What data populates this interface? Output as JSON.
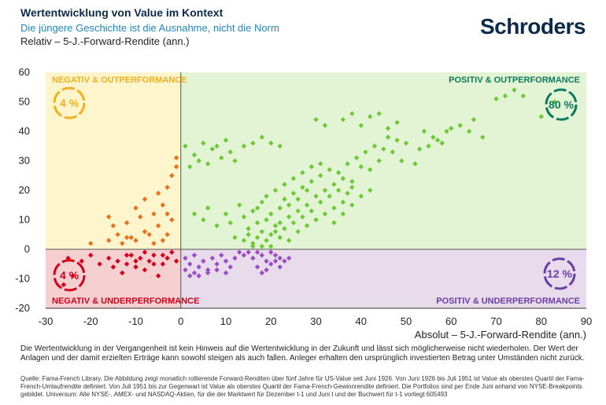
{
  "header": {
    "title": "Wertentwicklung von Value im Kontext",
    "subtitle": "Die jüngere Geschichte ist die Ausnahme, nicht die Norm",
    "logo": "Schroders"
  },
  "footer": {
    "disclaimer": "Die Wertentwicklung in der Vergangenheit ist kein Hinweis auf die Wertentwicklung in der Zukunft und lässt sich möglicherweise nicht wiederholen. Der Wert der Anlagen und der damit erzielten Erträge kann sowohl steigen als auch fallen. Anleger erhalten den ursprünglich investierten Betrag unter Umständen nicht zurück.",
    "source": "Quelle: Fama-French Library. Die Abbildung zeigt monatlich rollierende Forward-Renditen über fünf Jahre für US-Value seit Juni 1926. Von Juni 1926 bis Juli 1951 ist Value als oberstes Quartil der Fama-French-Umlaufrendite definiert. Von Juli 1951 bis zur Gegenwart ist Value als oberstes Quartil der Fama-French-Gewinnrendite definiert. Die Portfolios sind per Ende Juni anhand von NYSE-Breakpoints gebildet. Universum: Alle NYSE-, AMEX- und NASDAQ-Aktien, für die der Marktwert für Dezember t-1 und Juni t und der Buchwert für t-1 vorliegt 605493"
  },
  "chart_data": {
    "type": "scatter",
    "ylabel": "Relativ – 5-J.-Forward-Rendite (ann.)",
    "xlabel": "Absolut – 5-J.-Forward-Rendite (ann.)",
    "xlim": [
      -30,
      90
    ],
    "ylim": [
      -20,
      60
    ],
    "xticks": [
      "-30",
      "-20",
      "-10",
      "0",
      "10",
      "20",
      "30",
      "40",
      "50",
      "60",
      "70",
      "80",
      "90"
    ],
    "yticks": [
      "60",
      "50",
      "40",
      "30",
      "20",
      "10",
      "0",
      "-10",
      "-20"
    ],
    "colors": {
      "neg_out": "#e8701a",
      "pos_out": "#6cc935",
      "pos_under": "#9b4dc4",
      "neg_under": "#d4001b",
      "neg_out_text": "#f2b01e",
      "pos_out_text": "#0d7a5e",
      "pos_under_text": "#6a3fa3",
      "neg_under_text": "#d4001b",
      "neg_out_bg": "#fff5cc",
      "pos_out_bg": "#e3f4d4",
      "pos_under_bg": "#e8dbec",
      "neg_under_bg": "#f6cfd0"
    },
    "quadrants": {
      "neg_out": {
        "label": "NEGATIV & OUTPERFORMANCE",
        "pct": "4 %"
      },
      "pos_out": {
        "label": "POSITIV & OUTPERFORMANCE",
        "pct": "80 %"
      },
      "pos_under": {
        "label": "POSITIV & UNDERPERFORMANCE",
        "pct": "12 %"
      },
      "neg_under": {
        "label": "NEGATIV & UNDERPERFORMANCE",
        "pct": "4 %"
      }
    },
    "series": [
      {
        "group": "pos_out",
        "points": [
          [
            1,
            35
          ],
          [
            3,
            32
          ],
          [
            5,
            36
          ],
          [
            7,
            34
          ],
          [
            8,
            35
          ],
          [
            10,
            37
          ],
          [
            11,
            33
          ],
          [
            2,
            28
          ],
          [
            4,
            30
          ],
          [
            6,
            29
          ],
          [
            9,
            31
          ],
          [
            12,
            30
          ],
          [
            14,
            35
          ],
          [
            16,
            36
          ],
          [
            18,
            38
          ],
          [
            20,
            36
          ],
          [
            22,
            35
          ],
          [
            3,
            12
          ],
          [
            5,
            10
          ],
          [
            6,
            14
          ],
          [
            8,
            8
          ],
          [
            10,
            12
          ],
          [
            11,
            9
          ],
          [
            13,
            15
          ],
          [
            14,
            11
          ],
          [
            15,
            7
          ],
          [
            16,
            13
          ],
          [
            17,
            9
          ],
          [
            18,
            16
          ],
          [
            19,
            10
          ],
          [
            20,
            12
          ],
          [
            21,
            6
          ],
          [
            22,
            14
          ],
          [
            23,
            17
          ],
          [
            24,
            11
          ],
          [
            25,
            19
          ],
          [
            26,
            13
          ],
          [
            27,
            21
          ],
          [
            28,
            15
          ],
          [
            29,
            23
          ],
          [
            30,
            18
          ],
          [
            31,
            25
          ],
          [
            32,
            20
          ],
          [
            33,
            27
          ],
          [
            34,
            22
          ],
          [
            35,
            26
          ],
          [
            36,
            24
          ],
          [
            37,
            29
          ],
          [
            38,
            23
          ],
          [
            39,
            31
          ],
          [
            40,
            28
          ],
          [
            41,
            33
          ],
          [
            42,
            27
          ],
          [
            43,
            35
          ],
          [
            44,
            30
          ],
          [
            45,
            34
          ],
          [
            46,
            38
          ],
          [
            47,
            33
          ],
          [
            48,
            37
          ],
          [
            49,
            30
          ],
          [
            50,
            36
          ],
          [
            52,
            29
          ],
          [
            53,
            34
          ],
          [
            54,
            40
          ],
          [
            55,
            35
          ],
          [
            56,
            38
          ],
          [
            57,
            37
          ],
          [
            58,
            36
          ],
          [
            59,
            40
          ],
          [
            60,
            41
          ],
          [
            62,
            42
          ],
          [
            64,
            40
          ],
          [
            65,
            44
          ],
          [
            67,
            38
          ],
          [
            70,
            51
          ],
          [
            72,
            52
          ],
          [
            74,
            54
          ],
          [
            76,
            52
          ],
          [
            80,
            45
          ],
          [
            83,
            50
          ],
          [
            36,
            44
          ],
          [
            38,
            46
          ],
          [
            40,
            42
          ],
          [
            42,
            45
          ],
          [
            44,
            46
          ],
          [
            46,
            41
          ],
          [
            48,
            43
          ],
          [
            30,
            44
          ],
          [
            32,
            42
          ],
          [
            12,
            4
          ],
          [
            14,
            3
          ],
          [
            15,
            5
          ],
          [
            16,
            2
          ],
          [
            17,
            4
          ],
          [
            18,
            6
          ],
          [
            19,
            3
          ],
          [
            20,
            5
          ],
          [
            21,
            8
          ],
          [
            22,
            4
          ],
          [
            23,
            7
          ],
          [
            24,
            3
          ],
          [
            25,
            9
          ],
          [
            26,
            6
          ],
          [
            27,
            11
          ],
          [
            28,
            8
          ],
          [
            29,
            13
          ],
          [
            30,
            10
          ],
          [
            31,
            16
          ],
          [
            32,
            12
          ],
          [
            33,
            18
          ],
          [
            34,
            14
          ],
          [
            35,
            20
          ],
          [
            36,
            16
          ],
          [
            37,
            19
          ],
          [
            38,
            21
          ],
          [
            34,
            9
          ],
          [
            36,
            12
          ],
          [
            38,
            15
          ],
          [
            40,
            18
          ],
          [
            42,
            20
          ],
          [
            17,
            14
          ],
          [
            19,
            18
          ],
          [
            21,
            20
          ],
          [
            23,
            22
          ],
          [
            25,
            24
          ],
          [
            27,
            26
          ],
          [
            29,
            28
          ],
          [
            31,
            29
          ],
          [
            24,
            15
          ],
          [
            26,
            17
          ],
          [
            28,
            20
          ],
          [
            22,
            9
          ],
          [
            20,
            1
          ],
          [
            18,
            1
          ],
          [
            16,
            1
          ]
        ]
      },
      {
        "group": "pos_under",
        "points": [
          [
            1,
            -3
          ],
          [
            2,
            -5
          ],
          [
            3,
            -2
          ],
          [
            4,
            -6
          ],
          [
            5,
            -4
          ],
          [
            6,
            -7
          ],
          [
            7,
            -3
          ],
          [
            8,
            -5
          ],
          [
            9,
            -2
          ],
          [
            10,
            -4
          ],
          [
            11,
            -6
          ],
          [
            12,
            -3
          ],
          [
            13,
            -1
          ],
          [
            14,
            -2
          ],
          [
            15,
            -1
          ],
          [
            16,
            -3
          ],
          [
            17,
            -1
          ],
          [
            18,
            -2
          ],
          [
            19,
            -4
          ],
          [
            20,
            -1
          ],
          [
            21,
            -2
          ],
          [
            22,
            -3
          ],
          [
            17,
            -6
          ],
          [
            18,
            -8
          ],
          [
            19,
            -7
          ],
          [
            20,
            -5
          ],
          [
            21,
            -4
          ],
          [
            22,
            -6
          ],
          [
            23,
            -4
          ],
          [
            24,
            -3
          ],
          [
            3,
            -8
          ],
          [
            4,
            -9
          ],
          [
            6,
            -8
          ],
          [
            8,
            -7
          ],
          [
            10,
            -8
          ],
          [
            2,
            -9
          ],
          [
            1,
            -7
          ]
        ]
      },
      {
        "group": "neg_out",
        "points": [
          [
            -16,
            11
          ],
          [
            -15,
            8
          ],
          [
            -14,
            5
          ],
          [
            -13,
            2
          ],
          [
            -12,
            9
          ],
          [
            -11,
            4
          ],
          [
            -10,
            14
          ],
          [
            -9,
            11
          ],
          [
            -8,
            17
          ],
          [
            -7,
            5
          ],
          [
            -6,
            2
          ],
          [
            -5,
            8
          ],
          [
            -4,
            15
          ],
          [
            -3,
            21
          ],
          [
            -2,
            25
          ],
          [
            -1,
            28
          ],
          [
            -1,
            31
          ],
          [
            -2,
            10
          ],
          [
            -3,
            5
          ],
          [
            -4,
            3
          ],
          [
            -6,
            12
          ],
          [
            -8,
            6
          ],
          [
            -10,
            3
          ],
          [
            -12,
            4
          ],
          [
            -16,
            3
          ],
          [
            -20,
            2
          ],
          [
            -5,
            19
          ],
          [
            -3,
            12
          ]
        ]
      },
      {
        "group": "neg_under",
        "points": [
          [
            -25,
            -3
          ],
          [
            -22,
            -4
          ],
          [
            -20,
            -2
          ],
          [
            -18,
            -5
          ],
          [
            -16,
            -3
          ],
          [
            -15,
            -6
          ],
          [
            -14,
            -4
          ],
          [
            -13,
            -8
          ],
          [
            -12,
            -5
          ],
          [
            -11,
            -2
          ],
          [
            -10,
            -6
          ],
          [
            -9,
            -3
          ],
          [
            -8,
            -7
          ],
          [
            -7,
            -4
          ],
          [
            -6,
            -2
          ],
          [
            -5,
            -9
          ],
          [
            -4,
            -5
          ],
          [
            -3,
            -3
          ],
          [
            -2,
            -1
          ],
          [
            -1,
            -4
          ],
          [
            -4,
            -2
          ],
          [
            -6,
            -5
          ],
          [
            -8,
            -1
          ],
          [
            -10,
            -4
          ],
          [
            -12,
            -2
          ],
          [
            -24,
            -9
          ],
          [
            -26,
            -12
          ]
        ]
      }
    ]
  }
}
